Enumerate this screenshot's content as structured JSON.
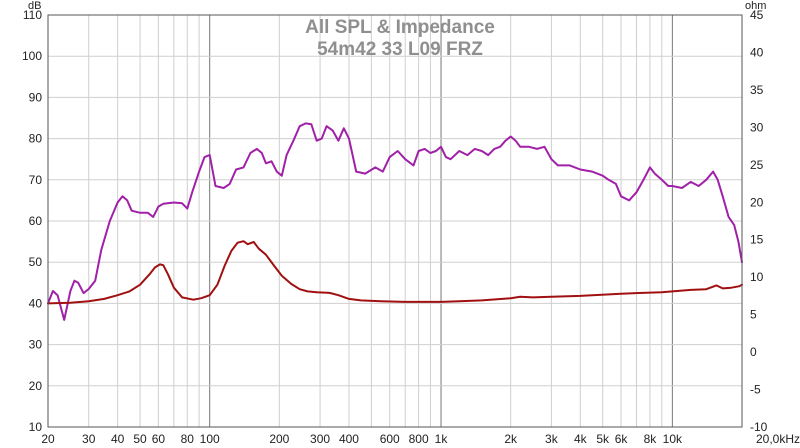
{
  "chart_data": {
    "type": "line",
    "title": "All SPL & Impedance",
    "subtitle": "54m42 33 L09 FRZ",
    "ylabel": "dB",
    "y2label": "ohm",
    "xlabel": "",
    "xscale": "log",
    "xlim": [
      20,
      20000
    ],
    "ylim": [
      10,
      110
    ],
    "y2lim": [
      -10,
      45
    ],
    "grid": true,
    "legend": "none",
    "x_tick_labels": [
      {
        "value": 20,
        "label": "20"
      },
      {
        "value": 30,
        "label": "30"
      },
      {
        "value": 40,
        "label": "40"
      },
      {
        "value": 50,
        "label": "50"
      },
      {
        "value": 60,
        "label": "60"
      },
      {
        "value": 80,
        "label": "80"
      },
      {
        "value": 100,
        "label": "100"
      },
      {
        "value": 200,
        "label": "200"
      },
      {
        "value": 300,
        "label": "300"
      },
      {
        "value": 400,
        "label": "400"
      },
      {
        "value": 600,
        "label": "600"
      },
      {
        "value": 800,
        "label": "800"
      },
      {
        "value": 1000,
        "label": "1k"
      },
      {
        "value": 2000,
        "label": "2k"
      },
      {
        "value": 3000,
        "label": "3k"
      },
      {
        "value": 4000,
        "label": "4k"
      },
      {
        "value": 5000,
        "label": "5k"
      },
      {
        "value": 6000,
        "label": "6k"
      },
      {
        "value": 8000,
        "label": "8k"
      },
      {
        "value": 10000,
        "label": "10k"
      },
      {
        "value": 20000,
        "label": "20,0kHz"
      }
    ],
    "y_ticks": [
      10,
      20,
      30,
      40,
      50,
      60,
      70,
      80,
      90,
      100,
      110
    ],
    "y2_ticks": [
      -10,
      -5,
      0,
      5,
      10,
      15,
      20,
      25,
      30,
      35,
      40,
      45
    ],
    "series": [
      {
        "axis": "left",
        "color": "#a020a8",
        "points": [
          [
            20,
            40
          ],
          [
            21,
            43
          ],
          [
            22,
            42
          ],
          [
            23.5,
            36
          ],
          [
            25,
            43
          ],
          [
            26,
            45.5
          ],
          [
            27,
            45
          ],
          [
            28.5,
            42.5
          ],
          [
            30,
            43.5
          ],
          [
            32,
            45.5
          ],
          [
            34,
            53
          ],
          [
            37,
            60
          ],
          [
            40,
            64.5
          ],
          [
            42,
            66
          ],
          [
            44,
            65
          ],
          [
            46,
            62.5
          ],
          [
            50,
            62
          ],
          [
            54,
            62
          ],
          [
            57,
            61
          ],
          [
            60,
            63.5
          ],
          [
            63,
            64.2
          ],
          [
            70,
            64.5
          ],
          [
            76,
            64.3
          ],
          [
            80,
            63
          ],
          [
            84,
            67
          ],
          [
            90,
            72
          ],
          [
            95,
            75.5
          ],
          [
            100,
            76
          ],
          [
            106,
            68.5
          ],
          [
            115,
            68
          ],
          [
            122,
            69
          ],
          [
            130,
            72.5
          ],
          [
            140,
            73
          ],
          [
            150,
            76.5
          ],
          [
            160,
            77.5
          ],
          [
            168,
            76.5
          ],
          [
            175,
            74
          ],
          [
            185,
            74.5
          ],
          [
            195,
            72
          ],
          [
            205,
            71
          ],
          [
            215,
            76
          ],
          [
            230,
            79.5
          ],
          [
            245,
            83
          ],
          [
            260,
            83.7
          ],
          [
            275,
            83.5
          ],
          [
            290,
            79.5
          ],
          [
            305,
            80
          ],
          [
            320,
            83
          ],
          [
            340,
            82
          ],
          [
            360,
            79.5
          ],
          [
            380,
            82.5
          ],
          [
            400,
            80
          ],
          [
            430,
            72
          ],
          [
            470,
            71.5
          ],
          [
            520,
            73
          ],
          [
            560,
            72
          ],
          [
            600,
            75.5
          ],
          [
            650,
            77
          ],
          [
            700,
            75
          ],
          [
            760,
            73.5
          ],
          [
            800,
            77
          ],
          [
            850,
            77.5
          ],
          [
            900,
            76.5
          ],
          [
            950,
            77
          ],
          [
            1000,
            78
          ],
          [
            1050,
            75.5
          ],
          [
            1100,
            75
          ],
          [
            1200,
            77
          ],
          [
            1300,
            76
          ],
          [
            1400,
            77.5
          ],
          [
            1500,
            77
          ],
          [
            1600,
            76
          ],
          [
            1700,
            77.5
          ],
          [
            1800,
            78
          ],
          [
            1900,
            79.5
          ],
          [
            2000,
            80.5
          ],
          [
            2100,
            79.5
          ],
          [
            2200,
            78
          ],
          [
            2400,
            78
          ],
          [
            2600,
            77.5
          ],
          [
            2800,
            78
          ],
          [
            3000,
            75
          ],
          [
            3200,
            73.5
          ],
          [
            3600,
            73.5
          ],
          [
            4000,
            72.5
          ],
          [
            4500,
            72
          ],
          [
            5000,
            71
          ],
          [
            5300,
            70
          ],
          [
            5700,
            69
          ],
          [
            6000,
            66
          ],
          [
            6500,
            65
          ],
          [
            7000,
            67
          ],
          [
            7500,
            70
          ],
          [
            8000,
            73
          ],
          [
            8400,
            71.5
          ],
          [
            8800,
            70.5
          ],
          [
            9200,
            69.5
          ],
          [
            9600,
            68.5
          ],
          [
            10000,
            68.5
          ],
          [
            11000,
            68
          ],
          [
            12000,
            69.5
          ],
          [
            13000,
            68.5
          ],
          [
            14000,
            70
          ],
          [
            15000,
            72
          ],
          [
            15700,
            70
          ],
          [
            16500,
            66
          ],
          [
            17500,
            61
          ],
          [
            18500,
            59
          ],
          [
            19300,
            55
          ],
          [
            20000,
            50
          ]
        ]
      },
      {
        "axis": "right",
        "color": "#a01010",
        "points": [
          [
            20,
            6.5
          ],
          [
            25,
            6.6
          ],
          [
            30,
            6.8
          ],
          [
            35,
            7.1
          ],
          [
            40,
            7.6
          ],
          [
            45,
            8.1
          ],
          [
            50,
            9.0
          ],
          [
            55,
            10.4
          ],
          [
            58,
            11.3
          ],
          [
            61,
            11.7
          ],
          [
            63,
            11.6
          ],
          [
            66,
            10.4
          ],
          [
            70,
            8.6
          ],
          [
            76,
            7.3
          ],
          [
            85,
            7.0
          ],
          [
            92,
            7.2
          ],
          [
            100,
            7.6
          ],
          [
            108,
            9.0
          ],
          [
            116,
            11.5
          ],
          [
            124,
            13.5
          ],
          [
            132,
            14.6
          ],
          [
            140,
            14.8
          ],
          [
            146,
            14.4
          ],
          [
            155,
            14.7
          ],
          [
            163,
            13.8
          ],
          [
            175,
            13.0
          ],
          [
            190,
            11.5
          ],
          [
            205,
            10.2
          ],
          [
            225,
            9.1
          ],
          [
            245,
            8.4
          ],
          [
            265,
            8.1
          ],
          [
            290,
            8.0
          ],
          [
            330,
            7.9
          ],
          [
            360,
            7.6
          ],
          [
            400,
            7.1
          ],
          [
            450,
            6.9
          ],
          [
            550,
            6.8
          ],
          [
            700,
            6.7
          ],
          [
            900,
            6.7
          ],
          [
            1000,
            6.7
          ],
          [
            1200,
            6.8
          ],
          [
            1500,
            6.9
          ],
          [
            2000,
            7.2
          ],
          [
            2200,
            7.4
          ],
          [
            2500,
            7.3
          ],
          [
            3000,
            7.4
          ],
          [
            4000,
            7.5
          ],
          [
            6000,
            7.8
          ],
          [
            9000,
            8.0
          ],
          [
            12000,
            8.3
          ],
          [
            14000,
            8.4
          ],
          [
            15500,
            8.9
          ],
          [
            16500,
            8.5
          ],
          [
            18000,
            8.6
          ],
          [
            19500,
            8.8
          ],
          [
            20000,
            9.0
          ]
        ]
      }
    ]
  }
}
